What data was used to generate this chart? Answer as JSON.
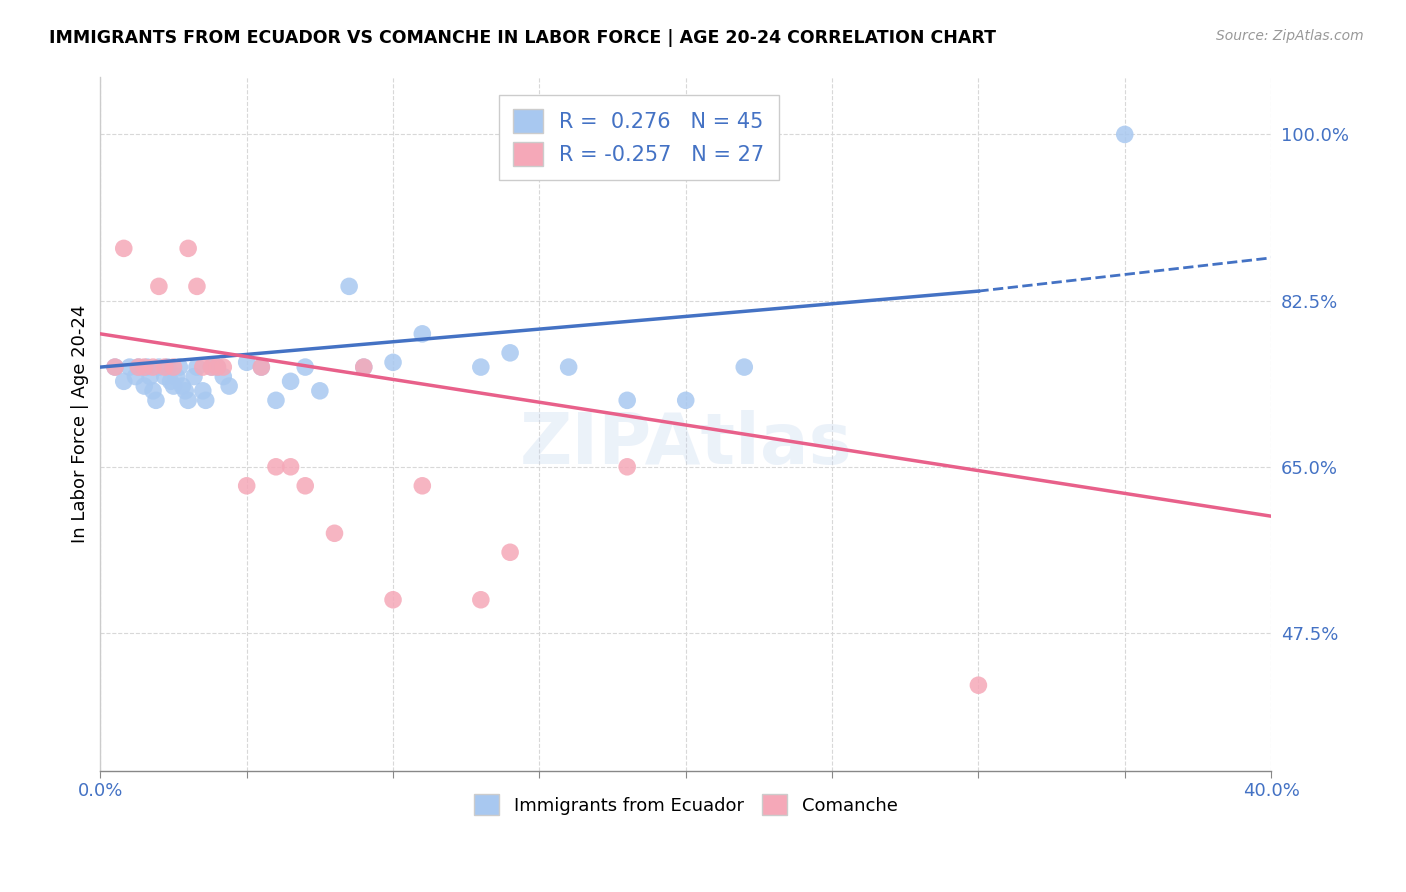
{
  "title": "IMMIGRANTS FROM ECUADOR VS COMANCHE IN LABOR FORCE | AGE 20-24 CORRELATION CHART",
  "source": "Source: ZipAtlas.com",
  "ylabel": "In Labor Force | Age 20-24",
  "xlim": [
    0.0,
    0.4
  ],
  "ylim": [
    0.33,
    1.06
  ],
  "r_ecuador": 0.276,
  "n_ecuador": 45,
  "r_comanche": -0.257,
  "n_comanche": 27,
  "ecuador_color": "#a8c8f0",
  "comanche_color": "#f5a8b8",
  "ecuador_line_color": "#4472c4",
  "comanche_line_color": "#e8608a",
  "ecuador_scatter": [
    [
      0.005,
      0.755
    ],
    [
      0.008,
      0.74
    ],
    [
      0.01,
      0.755
    ],
    [
      0.012,
      0.745
    ],
    [
      0.013,
      0.755
    ],
    [
      0.015,
      0.735
    ],
    [
      0.016,
      0.755
    ],
    [
      0.017,
      0.745
    ],
    [
      0.018,
      0.73
    ],
    [
      0.019,
      0.72
    ],
    [
      0.02,
      0.755
    ],
    [
      0.022,
      0.745
    ],
    [
      0.023,
      0.755
    ],
    [
      0.024,
      0.74
    ],
    [
      0.025,
      0.735
    ],
    [
      0.026,
      0.745
    ],
    [
      0.027,
      0.755
    ],
    [
      0.028,
      0.735
    ],
    [
      0.029,
      0.73
    ],
    [
      0.03,
      0.72
    ],
    [
      0.032,
      0.745
    ],
    [
      0.033,
      0.755
    ],
    [
      0.035,
      0.73
    ],
    [
      0.036,
      0.72
    ],
    [
      0.038,
      0.755
    ],
    [
      0.04,
      0.755
    ],
    [
      0.042,
      0.745
    ],
    [
      0.044,
      0.735
    ],
    [
      0.05,
      0.76
    ],
    [
      0.055,
      0.755
    ],
    [
      0.06,
      0.72
    ],
    [
      0.065,
      0.74
    ],
    [
      0.07,
      0.755
    ],
    [
      0.075,
      0.73
    ],
    [
      0.085,
      0.84
    ],
    [
      0.09,
      0.755
    ],
    [
      0.1,
      0.76
    ],
    [
      0.11,
      0.79
    ],
    [
      0.13,
      0.755
    ],
    [
      0.14,
      0.77
    ],
    [
      0.16,
      0.755
    ],
    [
      0.18,
      0.72
    ],
    [
      0.2,
      0.72
    ],
    [
      0.22,
      0.755
    ],
    [
      0.35,
      1.0
    ]
  ],
  "comanche_scatter": [
    [
      0.005,
      0.755
    ],
    [
      0.008,
      0.88
    ],
    [
      0.013,
      0.755
    ],
    [
      0.015,
      0.755
    ],
    [
      0.018,
      0.755
    ],
    [
      0.02,
      0.84
    ],
    [
      0.022,
      0.755
    ],
    [
      0.025,
      0.755
    ],
    [
      0.03,
      0.88
    ],
    [
      0.033,
      0.84
    ],
    [
      0.035,
      0.755
    ],
    [
      0.038,
      0.755
    ],
    [
      0.04,
      0.755
    ],
    [
      0.042,
      0.755
    ],
    [
      0.05,
      0.63
    ],
    [
      0.055,
      0.755
    ],
    [
      0.06,
      0.65
    ],
    [
      0.065,
      0.65
    ],
    [
      0.07,
      0.63
    ],
    [
      0.08,
      0.58
    ],
    [
      0.09,
      0.755
    ],
    [
      0.1,
      0.51
    ],
    [
      0.11,
      0.63
    ],
    [
      0.13,
      0.51
    ],
    [
      0.14,
      0.56
    ],
    [
      0.18,
      0.65
    ],
    [
      0.3,
      0.42
    ]
  ],
  "yticks_right": [
    1.0,
    0.825,
    0.65,
    0.475
  ],
  "yticklabels_right": [
    "100.0%",
    "82.5%",
    "65.0%",
    "47.5%"
  ],
  "background_color": "#ffffff",
  "grid_color": "#d8d8d8"
}
